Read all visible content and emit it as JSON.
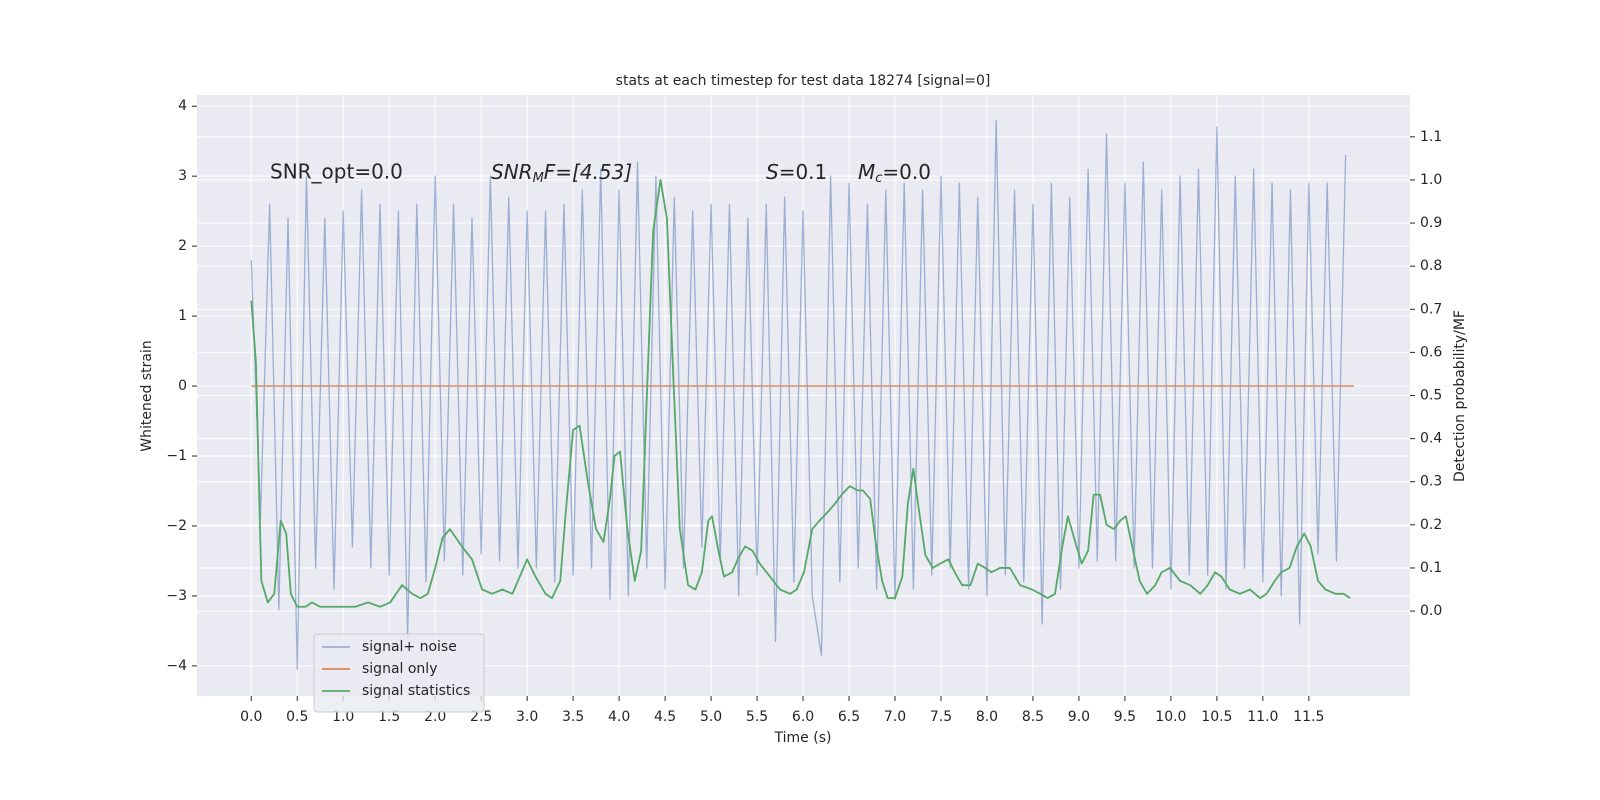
{
  "chart_data": {
    "type": "line",
    "title": "stats at each timestep for test data 18274 [signal=0]",
    "xlabel": "Time (s)",
    "ylabel": "Whitened strain",
    "y2label": "Detection probability/MF",
    "grid": true,
    "legend": "lower left",
    "xlim": [
      -0.59,
      12.6
    ],
    "ylim": [
      -4.43,
      4.16
    ],
    "y2lim": [
      -0.197,
      1.197
    ],
    "xticks": [
      {
        "value": 0,
        "label": "0.0"
      },
      {
        "value": 0.5,
        "label": "0.5"
      },
      {
        "value": 1,
        "label": "1.0"
      },
      {
        "value": 1.5,
        "label": "1.5"
      },
      {
        "value": 2,
        "label": "2.0"
      },
      {
        "value": 2.5,
        "label": "2.5"
      },
      {
        "value": 3,
        "label": "3.0"
      },
      {
        "value": 3.5,
        "label": "3.5"
      },
      {
        "value": 4,
        "label": "4.0"
      },
      {
        "value": 4.5,
        "label": "4.5"
      },
      {
        "value": 5,
        "label": "5.0"
      },
      {
        "value": 5.5,
        "label": "5.5"
      },
      {
        "value": 6,
        "label": "6.0"
      },
      {
        "value": 6.5,
        "label": "6.5"
      },
      {
        "value": 7,
        "label": "7.0"
      },
      {
        "value": 7.5,
        "label": "7.5"
      },
      {
        "value": 8,
        "label": "8.0"
      },
      {
        "value": 8.5,
        "label": "8.5"
      },
      {
        "value": 9,
        "label": "9.0"
      },
      {
        "value": 9.5,
        "label": "9.5"
      },
      {
        "value": 10,
        "label": "10.0"
      },
      {
        "value": 10.5,
        "label": "10.5"
      },
      {
        "value": 11,
        "label": "11.0"
      },
      {
        "value": 11.5,
        "label": "11.5"
      }
    ],
    "yticks": [
      {
        "value": -4,
        "label": "−4"
      },
      {
        "value": -3,
        "label": "−3"
      },
      {
        "value": -2,
        "label": "−2"
      },
      {
        "value": -1,
        "label": "−1"
      },
      0,
      1,
      2,
      3,
      4
    ],
    "y2ticks": [
      {
        "value": 0,
        "label": "0.0"
      },
      {
        "value": 0.1,
        "label": "0.1"
      },
      {
        "value": 0.2,
        "label": "0.2"
      },
      {
        "value": 0.3,
        "label": "0.3"
      },
      {
        "value": 0.4,
        "label": "0.4"
      },
      {
        "value": 0.5,
        "label": "0.5"
      },
      {
        "value": 0.6,
        "label": "0.6"
      },
      {
        "value": 0.7,
        "label": "0.7"
      },
      {
        "value": 0.8,
        "label": "0.8"
      },
      {
        "value": 0.9,
        "label": "0.9"
      },
      {
        "value": 1,
        "label": "1.0"
      },
      {
        "value": 1.1,
        "label": "1.1"
      }
    ],
    "annotations": [
      {
        "text": "SNR_opt=0.0"
      },
      {
        "main": "SNR",
        "sub": "M",
        "rest": "F=[4.53]"
      },
      {
        "main": "S",
        "rest": "=0.1"
      },
      {
        "main": "M",
        "sub": "c",
        "rest": "=0.0"
      }
    ],
    "series": [
      {
        "name": "signal+ noise",
        "color": "#4c72b0",
        "opacity": 0.5,
        "x": [
          0,
          0.1,
          0.2,
          0.3,
          0.4,
          0.5,
          0.6,
          0.7,
          0.8,
          0.9,
          1,
          1.1,
          1.2,
          1.3,
          1.4,
          1.5,
          1.6,
          1.7,
          1.8,
          1.9,
          2,
          2.1,
          2.2,
          2.3,
          2.4,
          2.5,
          2.6,
          2.7,
          2.8,
          2.9,
          3,
          3.1,
          3.2,
          3.3,
          3.4,
          3.5,
          3.6,
          3.7,
          3.8,
          3.9,
          4,
          4.1,
          4.2,
          4.3,
          4.4,
          4.5,
          4.6,
          4.7,
          4.8,
          4.9,
          5,
          5.1,
          5.2,
          5.3,
          5.4,
          5.5,
          5.6,
          5.7,
          5.8,
          5.9,
          6,
          6.1,
          6.2,
          6.3,
          6.4,
          6.5,
          6.6,
          6.7,
          6.8,
          6.9,
          7,
          7.1,
          7.2,
          7.3,
          7.4,
          7.5,
          7.6,
          7.7,
          7.8,
          7.9,
          8,
          8.1,
          8.2,
          8.3,
          8.4,
          8.5,
          8.6,
          8.7,
          8.8,
          8.9,
          9,
          9.1,
          9.2,
          9.3,
          9.4,
          9.5,
          9.6,
          9.7,
          9.8,
          9.9,
          10,
          10.1,
          10.2,
          10.3,
          10.4,
          10.5,
          10.6,
          10.7,
          10.8,
          10.9,
          11,
          11.1,
          11.2,
          11.3,
          11.4,
          11.5,
          11.6,
          11.7,
          11.8,
          11.9
        ],
        "values": [
          1.8,
          -1.9,
          2.6,
          -3.2,
          2.4,
          -4.05,
          3.0,
          -2.6,
          2.4,
          -2.9,
          2.5,
          -2.3,
          2.8,
          -2.6,
          2.6,
          -2.7,
          2.5,
          -3.6,
          2.6,
          -2.8,
          3.0,
          -2.5,
          2.6,
          -2.7,
          2.4,
          -2.4,
          3.0,
          -2.5,
          2.7,
          -2.6,
          2.5,
          -2.6,
          2.5,
          -2.8,
          2.6,
          -2.7,
          2.8,
          -2.6,
          3.1,
          -3.05,
          2.8,
          -3.0,
          3.2,
          -2.6,
          3.0,
          -2.9,
          2.7,
          -2.6,
          2.5,
          -2.3,
          2.6,
          -2.5,
          2.6,
          -3.0,
          2.4,
          -2.7,
          2.6,
          -3.65,
          2.7,
          -2.8,
          2.5,
          -3.0,
          -3.85,
          3.0,
          -2.8,
          2.9,
          -2.6,
          2.6,
          -2.9,
          2.8,
          -3.05,
          2.9,
          -2.9,
          2.8,
          -2.7,
          3.0,
          -2.6,
          2.9,
          -2.9,
          2.7,
          -3.0,
          3.8,
          -2.7,
          2.8,
          -2.8,
          2.6,
          -3.4,
          2.9,
          -2.9,
          2.7,
          -2.6,
          3.1,
          -2.5,
          3.6,
          -2.5,
          2.9,
          -2.6,
          3.2,
          -2.6,
          2.8,
          -2.9,
          3.0,
          -2.7,
          3.1,
          -2.7,
          3.7,
          -2.9,
          3.0,
          -2.6,
          3.1,
          -2.8,
          2.9,
          -3.0,
          2.8,
          -3.4,
          2.9,
          -2.4,
          2.9,
          -2.5,
          3.3
        ]
      },
      {
        "name": "signal only",
        "color": "#dd8452",
        "x": [
          0,
          11.99
        ],
        "values": [
          0,
          0
        ]
      },
      {
        "name": "signal statistics",
        "color": "#55a868",
        "axis": "y2",
        "x": [
          0,
          0.05,
          0.11,
          0.18,
          0.25,
          0.32,
          0.38,
          0.43,
          0.5,
          0.59,
          0.66,
          0.75,
          0.86,
          0.99,
          1.13,
          1.27,
          1.4,
          1.51,
          1.64,
          1.75,
          1.84,
          1.92,
          2.0,
          2.08,
          2.16,
          2.29,
          2.4,
          2.51,
          2.62,
          2.73,
          2.84,
          2.92,
          3.0,
          3.09,
          3.2,
          3.27,
          3.36,
          3.42,
          3.5,
          3.57,
          3.66,
          3.75,
          3.83,
          3.9,
          3.95,
          4.01,
          4.09,
          4.17,
          4.24,
          4.3,
          4.37,
          4.45,
          4.52,
          4.59,
          4.66,
          4.75,
          4.83,
          4.9,
          4.97,
          5.01,
          5.08,
          5.14,
          5.23,
          5.29,
          5.37,
          5.45,
          5.53,
          5.64,
          5.75,
          5.86,
          5.93,
          6.01,
          6.1,
          6.18,
          6.27,
          6.35,
          6.42,
          6.51,
          6.59,
          6.65,
          6.73,
          6.79,
          6.86,
          6.92,
          7.0,
          7.08,
          7.14,
          7.2,
          7.25,
          7.33,
          7.41,
          7.49,
          7.58,
          7.65,
          7.73,
          7.82,
          7.9,
          7.98,
          8.05,
          8.14,
          8.25,
          8.36,
          8.49,
          8.58,
          8.66,
          8.74,
          8.82,
          8.88,
          8.96,
          9.03,
          9.1,
          9.16,
          9.23,
          9.3,
          9.38,
          9.45,
          9.51,
          9.58,
          9.66,
          9.74,
          9.83,
          9.9,
          9.99,
          10.1,
          10.21,
          10.32,
          10.4,
          10.48,
          10.55,
          10.64,
          10.75,
          10.86,
          10.97,
          11.04,
          11.13,
          11.2,
          11.29,
          11.37,
          11.45,
          11.52,
          11.6,
          11.68,
          11.79,
          11.88,
          11.95
        ],
        "values": [
          0.72,
          0.58,
          0.07,
          0.02,
          0.04,
          0.21,
          0.18,
          0.04,
          0.01,
          0.01,
          0.02,
          0.01,
          0.01,
          0.01,
          0.01,
          0.02,
          0.01,
          0.02,
          0.06,
          0.04,
          0.03,
          0.04,
          0.1,
          0.17,
          0.19,
          0.15,
          0.12,
          0.05,
          0.04,
          0.05,
          0.04,
          0.08,
          0.12,
          0.08,
          0.04,
          0.03,
          0.07,
          0.23,
          0.42,
          0.43,
          0.3,
          0.19,
          0.16,
          0.26,
          0.36,
          0.37,
          0.19,
          0.07,
          0.14,
          0.49,
          0.88,
          1.0,
          0.91,
          0.54,
          0.19,
          0.06,
          0.05,
          0.09,
          0.21,
          0.22,
          0.14,
          0.08,
          0.09,
          0.12,
          0.15,
          0.14,
          0.11,
          0.08,
          0.05,
          0.04,
          0.05,
          0.09,
          0.19,
          0.21,
          0.23,
          0.25,
          0.27,
          0.29,
          0.28,
          0.28,
          0.26,
          0.16,
          0.07,
          0.03,
          0.03,
          0.08,
          0.25,
          0.33,
          0.25,
          0.13,
          0.1,
          0.11,
          0.12,
          0.09,
          0.06,
          0.06,
          0.11,
          0.1,
          0.09,
          0.1,
          0.1,
          0.06,
          0.05,
          0.04,
          0.03,
          0.04,
          0.15,
          0.22,
          0.16,
          0.11,
          0.14,
          0.27,
          0.27,
          0.2,
          0.19,
          0.21,
          0.22,
          0.15,
          0.07,
          0.04,
          0.06,
          0.09,
          0.1,
          0.07,
          0.06,
          0.04,
          0.06,
          0.09,
          0.08,
          0.05,
          0.04,
          0.05,
          0.03,
          0.04,
          0.07,
          0.09,
          0.1,
          0.15,
          0.18,
          0.15,
          0.07,
          0.05,
          0.04,
          0.04,
          0.03
        ]
      }
    ]
  }
}
